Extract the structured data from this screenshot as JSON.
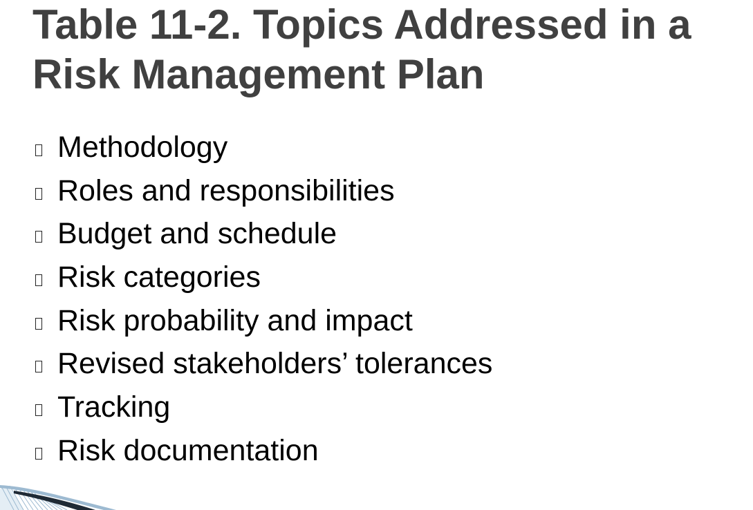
{
  "slide": {
    "title": "Table 11-2. Topics Addressed in a Risk Management Plan",
    "bullet_icon": "hollow-square-bullet",
    "bullets": [
      "Methodology",
      "Roles and responsibilities",
      "Budget and schedule",
      "Risk categories",
      "Risk probability and impact",
      "Revised stakeholders’ tolerances",
      "Tracking",
      "Risk documentation"
    ],
    "colors": {
      "title": "#404040",
      "body": "#000000",
      "swoosh_light": "#9dbad1",
      "swoosh_dark": "#1f2a35"
    }
  }
}
